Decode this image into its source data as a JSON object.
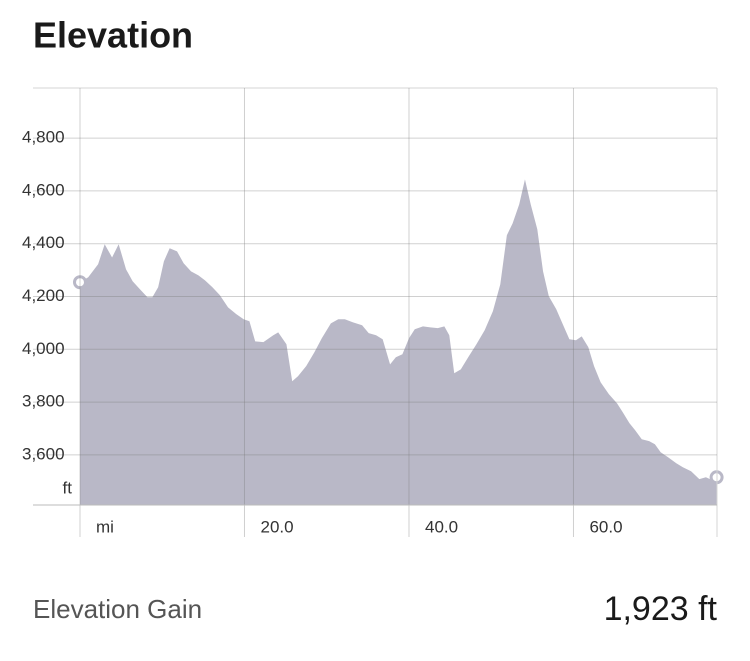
{
  "title": "Elevation",
  "chart_data": {
    "type": "area",
    "color": "#b9b8c7",
    "grid": true,
    "y_label": "ft",
    "xlim": [
      0,
      77.45
    ],
    "ylim": [
      3410,
      4990
    ],
    "xticks": [
      {
        "value": 0,
        "label": "mi"
      },
      {
        "value": 20,
        "label": "20.0"
      },
      {
        "value": 40,
        "label": "40.0"
      },
      {
        "value": 60,
        "label": "60.0"
      }
    ],
    "yticks": [
      {
        "value": 3600,
        "label": "3,600"
      },
      {
        "value": 3800,
        "label": "3,800"
      },
      {
        "value": 4000,
        "label": "4,000"
      },
      {
        "value": 4200,
        "label": "4,200"
      },
      {
        "value": 4400,
        "label": "4,400"
      },
      {
        "value": 4600,
        "label": "4,600"
      },
      {
        "value": 4800,
        "label": "4,800"
      }
    ],
    "x": [
      0,
      1.0,
      2.2,
      3.0,
      3.9,
      4.7,
      5.6,
      6.4,
      7.3,
      8.2,
      8.8,
      9.5,
      10.2,
      10.9,
      11.8,
      12.6,
      13.5,
      14.4,
      15.2,
      16.1,
      17.0,
      18.0,
      19.0,
      19.9,
      20.6,
      21.3,
      22.3,
      23.5,
      24.1,
      25.1,
      25.8,
      26.5,
      27.5,
      28.5,
      29.4,
      30.5,
      31.4,
      32.2,
      33.2,
      34.3,
      35.1,
      36.0,
      36.8,
      37.7,
      38.4,
      39.2,
      40.0,
      40.7,
      41.7,
      42.6,
      43.5,
      44.3,
      44.9,
      45.5,
      46.3,
      47.2,
      48.2,
      49.2,
      50.2,
      51.1,
      51.9,
      52.6,
      53.4,
      54.1,
      54.8,
      55.6,
      56.3,
      57.0,
      57.9,
      58.7,
      59.5,
      60.3,
      61.0,
      61.8,
      62.5,
      63.3,
      64.3,
      65.3,
      66.0,
      66.8,
      67.5,
      68.3,
      69.2,
      69.9,
      70.6,
      71.5,
      72.5,
      73.3,
      74.3,
      75.3,
      76.1,
      76.6,
      77.4
    ],
    "values": [
      4254,
      4273,
      4322,
      4398,
      4348,
      4398,
      4303,
      4258,
      4227,
      4197,
      4197,
      4235,
      4333,
      4383,
      4371,
      4326,
      4295,
      4280,
      4261,
      4235,
      4205,
      4159,
      4133,
      4114,
      4106,
      4030,
      4027,
      4053,
      4064,
      4019,
      3879,
      3898,
      3936,
      3989,
      4042,
      4098,
      4114,
      4114,
      4102,
      4091,
      4061,
      4053,
      4038,
      3943,
      3970,
      3981,
      4042,
      4076,
      4087,
      4083,
      4080,
      4087,
      4053,
      3909,
      3924,
      3970,
      4019,
      4072,
      4144,
      4246,
      4432,
      4477,
      4549,
      4644,
      4549,
      4455,
      4295,
      4201,
      4152,
      4095,
      4038,
      4034,
      4049,
      4008,
      3936,
      3875,
      3830,
      3795,
      3761,
      3720,
      3693,
      3659,
      3652,
      3640,
      3610,
      3591,
      3568,
      3553,
      3538,
      3508,
      3515,
      3508,
      3515
    ]
  },
  "summary": {
    "label": "Elevation Gain",
    "value": "1,923 ft"
  }
}
